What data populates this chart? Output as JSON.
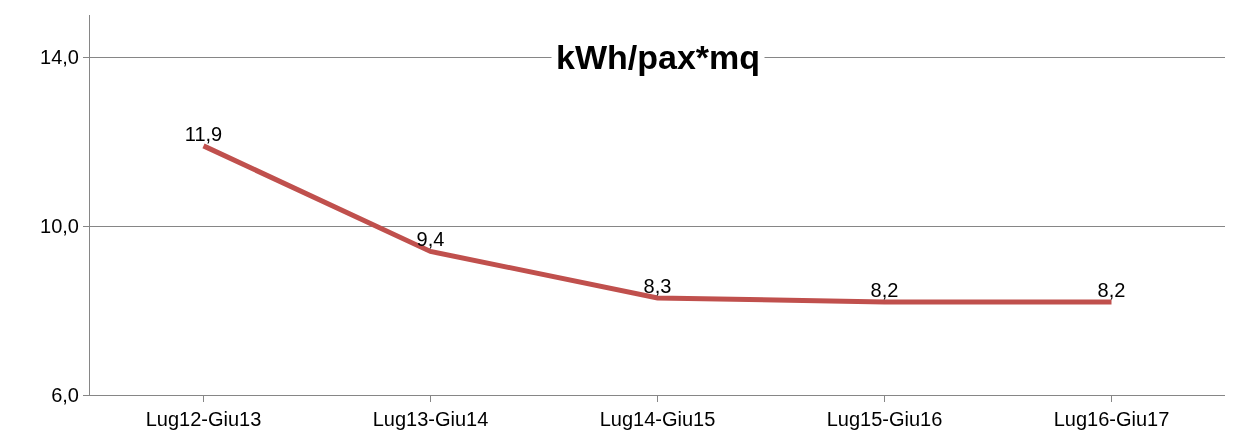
{
  "chart_data": {
    "type": "line",
    "title": "kWh/pax*mq",
    "categories": [
      "Lug12-Giu13",
      "Lug13-Giu14",
      "Lug14-Giu15",
      "Lug15-Giu16",
      "Lug16-Giu17"
    ],
    "series": [
      {
        "color": "#c0504d",
        "values": [
          11.9,
          9.4,
          8.3,
          8.2,
          8.2
        ],
        "value_labels": [
          "11,9",
          "9,4",
          "8,3",
          "8,2",
          "8,2"
        ]
      }
    ],
    "ylim": [
      6,
      15
    ],
    "yticks": [
      {
        "value": 6,
        "label": "6,0"
      },
      {
        "value": 10,
        "label": "10,0"
      },
      {
        "value": 14,
        "label": "14,0"
      }
    ],
    "grid": "y",
    "marker": "none",
    "line_style": "solid"
  }
}
